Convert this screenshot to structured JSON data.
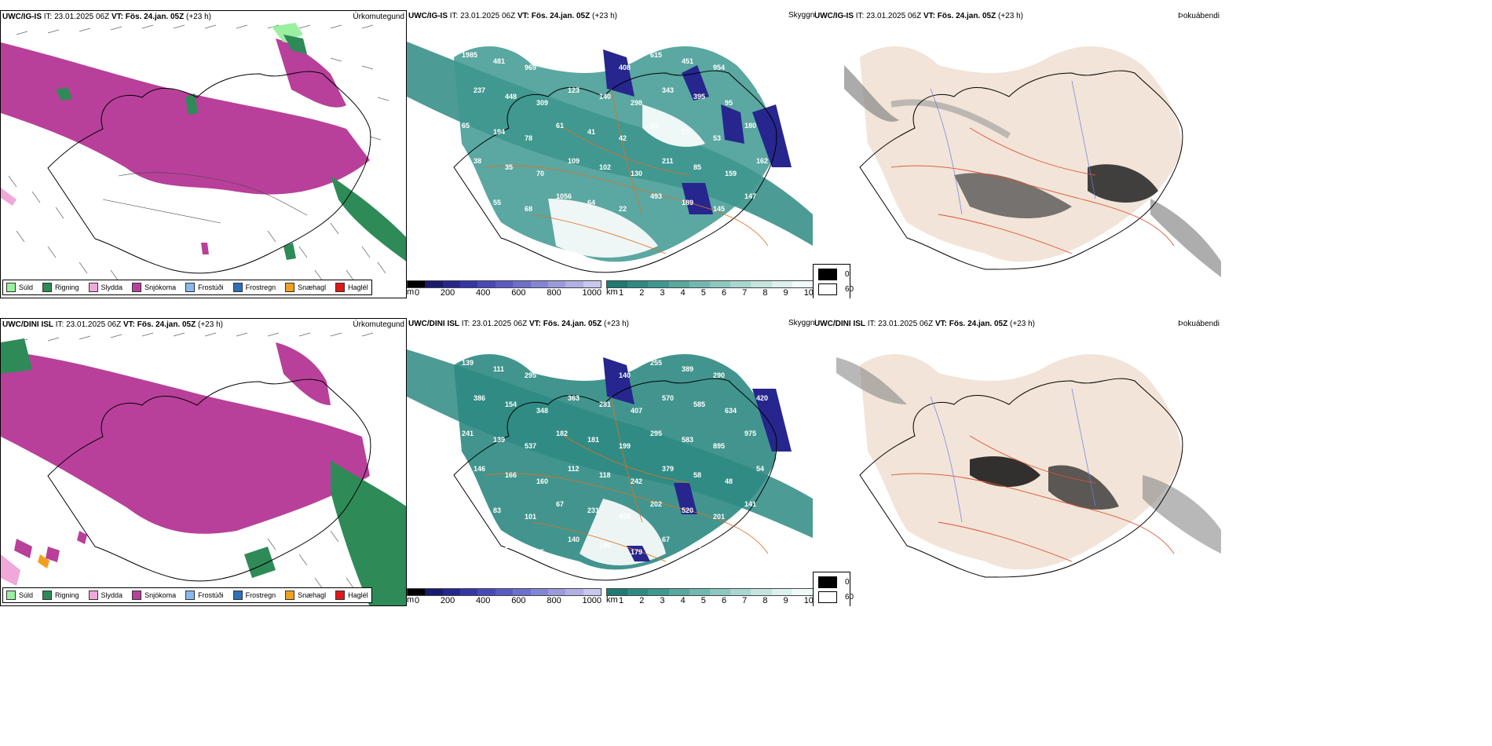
{
  "rows": [
    {
      "model": "UWC/IG-IS",
      "it_label": "IT:",
      "it_value": "23.01.2025 06Z",
      "vt_label": "VT:",
      "vt_value": "Fös. 24.jan. 05Z",
      "lead": "(+23 h)",
      "visibility_labels": [
        "1985",
        "481",
        "969",
        "219",
        "225",
        "408",
        "615",
        "451",
        "954",
        "499",
        "237",
        "448",
        "309",
        "123",
        "140",
        "298",
        "343",
        "395",
        "95",
        "72",
        "65",
        "194",
        "78",
        "61",
        "41",
        "42",
        "50",
        "57",
        "53",
        "180",
        "38",
        "35",
        "70",
        "109",
        "102",
        "130",
        "211",
        "85",
        "159",
        "162",
        "12",
        "55",
        "68",
        "1056",
        "64",
        "22",
        "493",
        "189",
        "145",
        "147"
      ]
    },
    {
      "model": "UWC/DINI ISL",
      "it_label": "IT:",
      "it_value": "23.01.2025 06Z",
      "vt_label": "VT:",
      "vt_value": "Fös. 24.jan. 05Z",
      "lead": "(+23 h)",
      "visibility_labels": [
        "139",
        "111",
        "295",
        "300",
        "730",
        "140",
        "255",
        "389",
        "290",
        "232",
        "386",
        "154",
        "348",
        "363",
        "281",
        "407",
        "570",
        "585",
        "634",
        "420",
        "241",
        "139",
        "537",
        "182",
        "181",
        "199",
        "295",
        "583",
        "895",
        "975",
        "146",
        "166",
        "160",
        "112",
        "118",
        "242",
        "379",
        "58",
        "48",
        "54",
        "57",
        "83",
        "101",
        "67",
        "231",
        "459",
        "202",
        "520",
        "201",
        "141",
        "322",
        "200",
        "75",
        "140",
        "190",
        "179",
        "67",
        "58"
      ]
    }
  ],
  "panel_types": {
    "precip": "Úrkomutegund",
    "visibility": "Skyggni",
    "fog": "Þokuábendi"
  },
  "precip_legend": [
    {
      "label": "Súld",
      "color": "#9af0a0"
    },
    {
      "label": "Rigning",
      "color": "#2e8b57"
    },
    {
      "label": "Slydda",
      "color": "#f0a8d8"
    },
    {
      "label": "Snjókoma",
      "color": "#b8409a"
    },
    {
      "label": "Frostúði",
      "color": "#8ab8ec"
    },
    {
      "label": "Frostregn",
      "color": "#2e70b8"
    },
    {
      "label": "Snæhagl",
      "color": "#f0a020"
    },
    {
      "label": "Haglél",
      "color": "#e01818"
    }
  ],
  "height_bar": {
    "unit": "m",
    "ticks": [
      "0",
      "200",
      "400",
      "600",
      "800",
      "1000"
    ],
    "colors": [
      "#000000",
      "#1a1a6e",
      "#26268e",
      "#3535a8",
      "#4848b8",
      "#5a5ac4",
      "#6e6ecc",
      "#8484d4",
      "#9a9adc",
      "#b0b0e4",
      "#c8c8ee"
    ]
  },
  "vis_bar": {
    "unit": "km",
    "ticks": [
      "1",
      "2",
      "3",
      "4",
      "5",
      "6",
      "7",
      "8",
      "9",
      "10"
    ],
    "colors": [
      "#1e7a72",
      "#2e8a82",
      "#3e9890",
      "#58a8a0",
      "#72b8b0",
      "#8cc8c0",
      "#a8d6d0",
      "#c4e4e0",
      "#dcf0ee",
      "#f0faf8"
    ]
  },
  "fog_legend": [
    {
      "label": "0",
      "color": "#000000"
    },
    {
      "label": "60",
      "color": "#ffffff"
    }
  ]
}
